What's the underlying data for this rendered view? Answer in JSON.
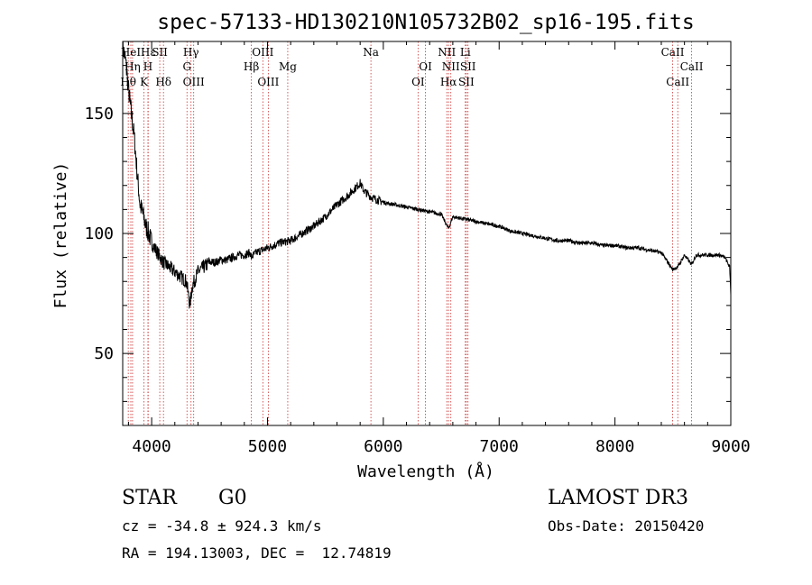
{
  "chart_data": {
    "type": "line",
    "title": "spec-57133-HD130210N105732B02_sp16-195.fits",
    "xlabel": "Wavelength (Å)",
    "ylabel": "Flux (relative)",
    "xlim": [
      3750,
      9000
    ],
    "ylim": [
      20,
      180
    ],
    "xticks": [
      4000,
      5000,
      6000,
      7000,
      8000,
      9000
    ],
    "yticks": [
      50,
      100,
      150
    ],
    "x": [
      3750,
      3775,
      3800,
      3825,
      3850,
      3875,
      3900,
      3925,
      3950,
      3975,
      4000,
      4050,
      4100,
      4150,
      4200,
      4250,
      4300,
      4330,
      4350,
      4400,
      4450,
      4500,
      4550,
      4600,
      4650,
      4700,
      4750,
      4800,
      4850,
      4861,
      4900,
      4950,
      5000,
      5100,
      5200,
      5300,
      5400,
      5500,
      5600,
      5700,
      5800,
      5830,
      5850,
      5900,
      5950,
      6000,
      6100,
      6200,
      6300,
      6400,
      6500,
      6563,
      6600,
      6700,
      6800,
      6900,
      7000,
      7100,
      7200,
      7300,
      7400,
      7500,
      7600,
      7700,
      7800,
      7900,
      8000,
      8100,
      8200,
      8300,
      8400,
      8498,
      8542,
      8600,
      8662,
      8700,
      8800,
      8900,
      8950,
      8990,
      9000
    ],
    "y": [
      178,
      172,
      160,
      150,
      140,
      125,
      112,
      108,
      103,
      100,
      96,
      92,
      88,
      86,
      84,
      82,
      80,
      70,
      78,
      84,
      86,
      88,
      88,
      89,
      89,
      90,
      91,
      91,
      92,
      90,
      92,
      93,
      94,
      96,
      97,
      100,
      103,
      107,
      112,
      116,
      121,
      118,
      117,
      115,
      114,
      113,
      112,
      111,
      110,
      109,
      108,
      102,
      107,
      106,
      105,
      104,
      103,
      101,
      100,
      99,
      98,
      97,
      97,
      96,
      96,
      95,
      95,
      94,
      94,
      93,
      92,
      85,
      86,
      91,
      87,
      91,
      91,
      91,
      90,
      86,
      75
    ],
    "lines": [
      {
        "label": "Hε",
        "wave": 3970
      },
      {
        "label": "HeI",
        "wave": 3820
      },
      {
        "label": "SII",
        "wave": 4070
      },
      {
        "label": "Hγ",
        "wave": 4340
      },
      {
        "label": "OIII",
        "wave": 4960
      },
      {
        "label": "Na",
        "wave": 5893
      },
      {
        "label": "NII",
        "wave": 6548
      },
      {
        "label": "Li",
        "wave": 6708
      },
      {
        "label": "CaII",
        "wave": 8498
      },
      {
        "label": "Hη",
        "wave": 3835
      },
      {
        "label": "H",
        "wave": 3968
      },
      {
        "label": "G",
        "wave": 4305
      },
      {
        "label": "Hβ",
        "wave": 4861
      },
      {
        "label": "Mg",
        "wave": 5175
      },
      {
        "label": "OI",
        "wave": 6364
      },
      {
        "label": "NII",
        "wave": 6583
      },
      {
        "label": "SII",
        "wave": 6731
      },
      {
        "label": "CaII",
        "wave": 8662
      },
      {
        "label": "Hθ",
        "wave": 3798
      },
      {
        "label": "K",
        "wave": 3934
      },
      {
        "label": "Hδ",
        "wave": 4102
      },
      {
        "label": "OIII",
        "wave": 4363
      },
      {
        "label": "OIII",
        "wave": 5007
      },
      {
        "label": "OI",
        "wave": 6300
      },
      {
        "label": "Hα",
        "wave": 6563
      },
      {
        "label": "SII",
        "wave": 6717
      },
      {
        "label": "CaII",
        "wave": 8542
      }
    ]
  },
  "info": {
    "object_class": "STAR",
    "subclass": "G0",
    "survey": "LAMOST DR3",
    "redshift": "cz = -34.8 ± 924.3 km/s",
    "obs_date": "Obs-Date: 20150420",
    "coords": "RA = 194.13003, DEC =  12.74819"
  }
}
